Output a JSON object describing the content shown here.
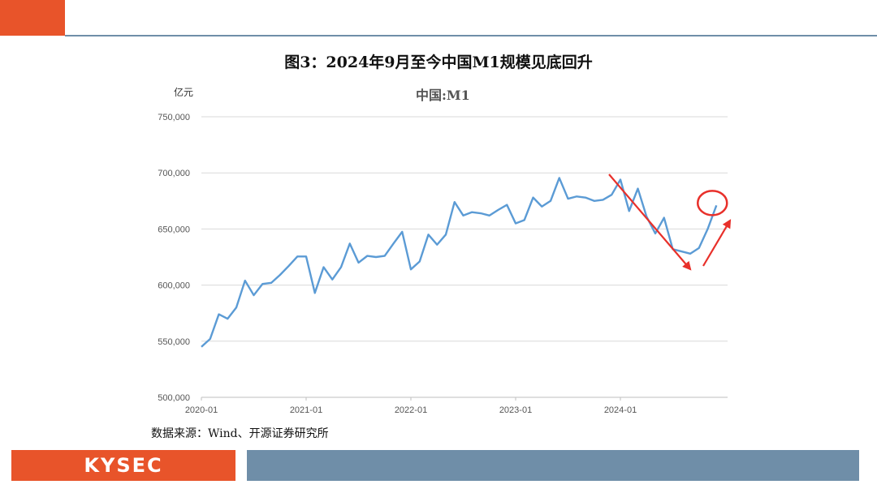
{
  "slide": {
    "figure_title": "图3：2024年9月至今中国M1规模见底回升",
    "source_note": "数据来源：Wind、开源证券研究所",
    "brand": "KYSEC",
    "accent_color": "#e8542a",
    "bar_color": "#6f8ea8"
  },
  "chart_data": {
    "type": "line",
    "title": "中国:M1",
    "ylabel": "亿元",
    "ylim": [
      500000,
      750000
    ],
    "yticks": [
      "500,000",
      "550,000",
      "600,000",
      "650,000",
      "700,000",
      "750,000"
    ],
    "xticks": [
      "2020-01",
      "2021-01",
      "2022-01",
      "2023-01",
      "2024-01"
    ],
    "grid": true,
    "line_color": "#5b9bd5",
    "annotation_color": "#e8302a",
    "series": [
      {
        "name": "中国:M1",
        "x": [
          "2020-01",
          "2020-02",
          "2020-03",
          "2020-04",
          "2020-05",
          "2020-06",
          "2020-07",
          "2020-08",
          "2020-09",
          "2020-10",
          "2020-11",
          "2020-12",
          "2021-01",
          "2021-02",
          "2021-03",
          "2021-04",
          "2021-05",
          "2021-06",
          "2021-07",
          "2021-08",
          "2021-09",
          "2021-10",
          "2021-11",
          "2021-12",
          "2022-01",
          "2022-02",
          "2022-03",
          "2022-04",
          "2022-05",
          "2022-06",
          "2022-07",
          "2022-08",
          "2022-09",
          "2022-10",
          "2022-11",
          "2022-12",
          "2023-01",
          "2023-02",
          "2023-03",
          "2023-04",
          "2023-05",
          "2023-06",
          "2023-07",
          "2023-08",
          "2023-09",
          "2023-10",
          "2023-11",
          "2023-12",
          "2024-01",
          "2024-02",
          "2024-03",
          "2024-04",
          "2024-05",
          "2024-06",
          "2024-07",
          "2024-08",
          "2024-09",
          "2024-10",
          "2024-11",
          "2024-12"
        ],
        "values": [
          545000,
          552000,
          574000,
          570000,
          580000,
          604000,
          591000,
          601000,
          602000,
          609000,
          617000,
          625500,
          625500,
          593000,
          616000,
          605000,
          616000,
          637000,
          620000,
          626000,
          625000,
          626000,
          637000,
          647500,
          614000,
          621000,
          645000,
          636000,
          645000,
          674000,
          662000,
          665000,
          664000,
          662000,
          667000,
          671500,
          655000,
          658000,
          678000,
          670000,
          675000,
          695500,
          677000,
          679000,
          678000,
          675000,
          676000,
          680500,
          694000,
          666000,
          686000,
          661000,
          646000,
          660000,
          632000,
          630000,
          628000,
          633000,
          650000,
          671000
        ]
      }
    ]
  }
}
